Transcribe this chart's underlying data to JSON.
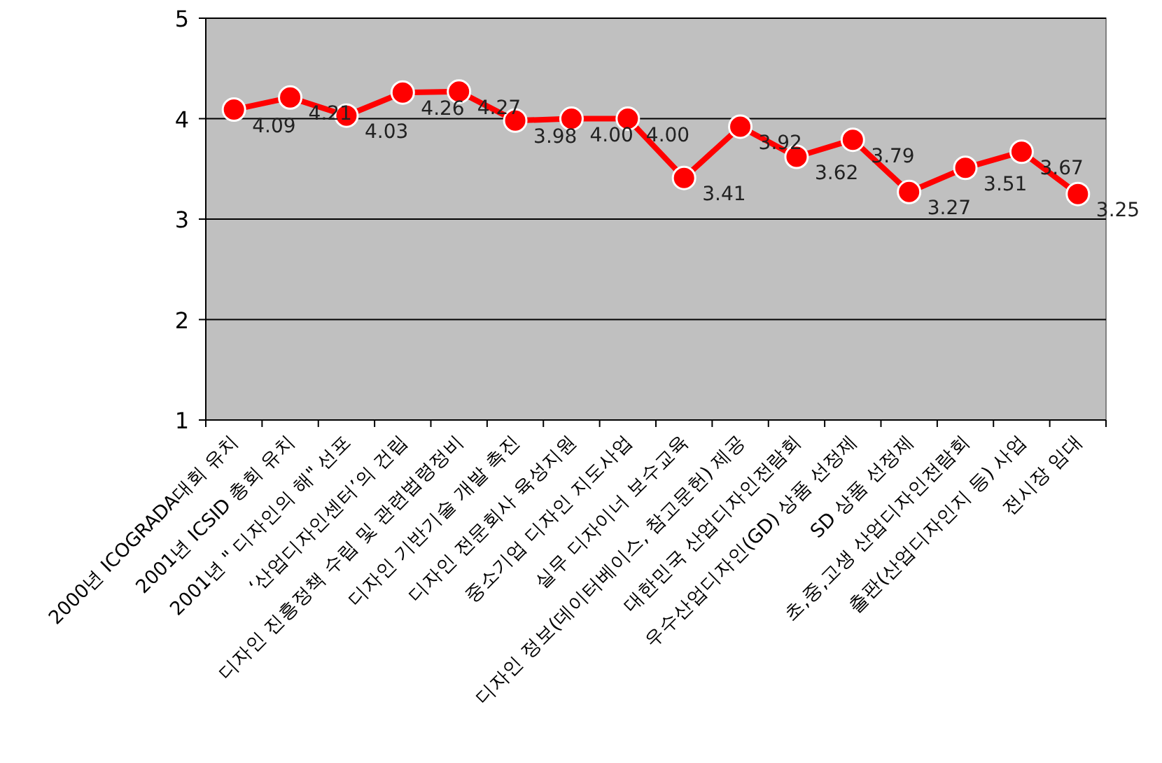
{
  "chart_data": {
    "type": "line",
    "categories": [
      "2000년 ICOGRADA대회 유치",
      "2001년 ICSID 총회 유치",
      "2001년 \" 디자인의 해\" 선포",
      "‘산업디자인센터’의 건립",
      "디자인 진흥정책 수립 및 관련법령정비",
      "디자인 기반기술 개발 촉진",
      "디자인 전문회사 육성지원",
      "중소기업 디자인 지도사업",
      "실무 디자이너 보수교육",
      "디자인 정보(데이터베이스, 참고문헌) 제공",
      "대한민국 산업디자인전람회",
      "우수산업디자인(GD) 상품 선정제",
      "SD 상품 선정제",
      "초,중,고생 산업디자인전람회",
      "출판(산업디자인지 등) 사업",
      "전시장 임대"
    ],
    "series": [
      {
        "color": "#ff0000",
        "values": [
          4.09,
          4.21,
          4.03,
          4.26,
          4.27,
          3.98,
          4.0,
          4.0,
          3.41,
          3.92,
          3.62,
          3.79,
          3.27,
          3.51,
          3.67,
          3.25
        ],
        "value_labels": [
          "4.09",
          "4.21",
          "4.03",
          "4.26",
          "4.27",
          "3.98",
          "4.00",
          "4.00",
          "3.41",
          "3.92",
          "3.62",
          "3.79",
          "3.27",
          "3.51",
          "3.67",
          "3.25"
        ]
      }
    ],
    "ylim": [
      1,
      5
    ],
    "yticks": [
      1,
      2,
      3,
      4,
      5
    ],
    "grid": "y",
    "marker": "circle"
  }
}
